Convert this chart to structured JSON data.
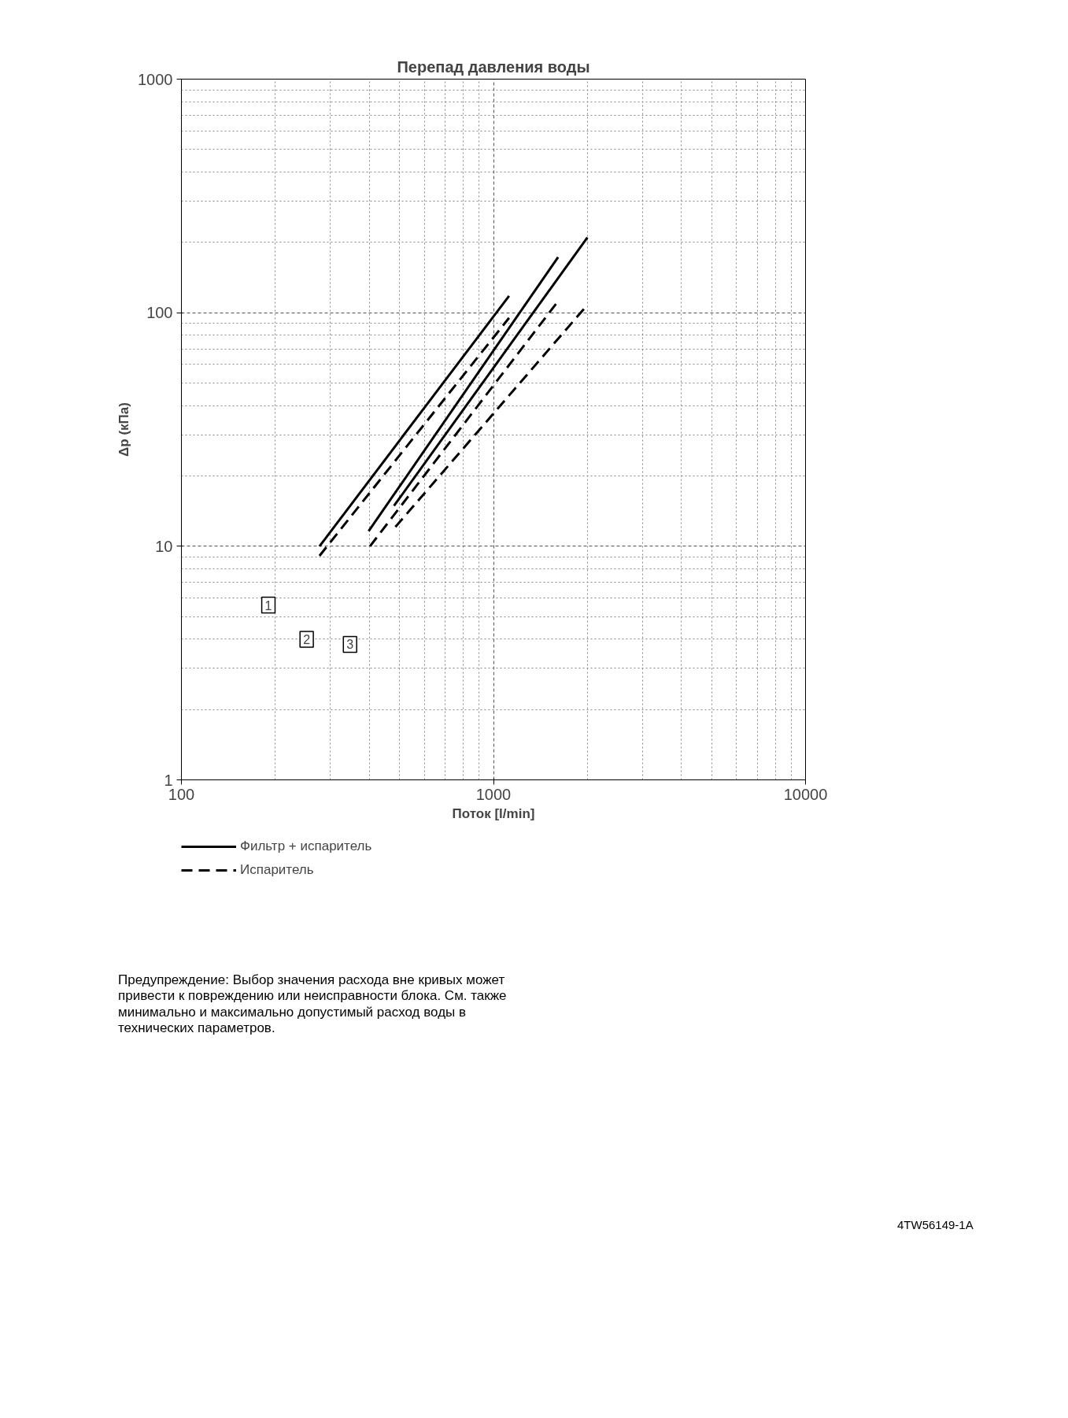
{
  "chart_data": {
    "type": "line",
    "title": "Перепад давления воды",
    "xlabel": "Поток [l/min]",
    "ylabel": "Δp (кПа)",
    "log": "xy",
    "xlim": [
      100,
      10000
    ],
    "ylim": [
      1,
      1000
    ],
    "xticks": [
      100,
      1000,
      10000
    ],
    "yticks": [
      1,
      10,
      100,
      1000
    ],
    "grid": true,
    "legend": "bottom",
    "series": [
      {
        "name": "Фильтр + испаритель",
        "color": "#000000",
        "line_style": "solid",
        "x": [
          277,
          1122
        ],
        "values": [
          10,
          118
        ]
      },
      {
        "color": "#000000",
        "line_style": "solid",
        "x": [
          398,
          1611
        ],
        "values": [
          11.6,
          173
        ]
      },
      {
        "color": "#000000",
        "line_style": "solid",
        "x": [
          480,
          2000
        ],
        "values": [
          14.9,
          210
        ]
      },
      {
        "name": "Испаритель",
        "color": "#000000",
        "line_style": "dashed",
        "x": [
          277,
          1122
        ],
        "values": [
          9.1,
          95
        ]
      },
      {
        "color": "#000000",
        "line_style": "dashed",
        "x": [
          402,
          1611
        ],
        "values": [
          10,
          112
        ]
      },
      {
        "color": "#000000",
        "line_style": "dashed",
        "x": [
          485,
          2000
        ],
        "values": [
          12.1,
          108
        ]
      }
    ],
    "annotations": [
      {
        "text": "1",
        "x": 190,
        "y": 5.6
      },
      {
        "text": "2",
        "x": 252,
        "y": 4.0
      },
      {
        "text": "3",
        "x": 347,
        "y": 3.8
      },
      "Предупреждение: Выбор значения расхода вне кривых может привести к повреждению или неисправности блока. См. также минимально и максимально допустимый расход воды в технических параметров.",
      "4TW56149-1A"
    ]
  }
}
